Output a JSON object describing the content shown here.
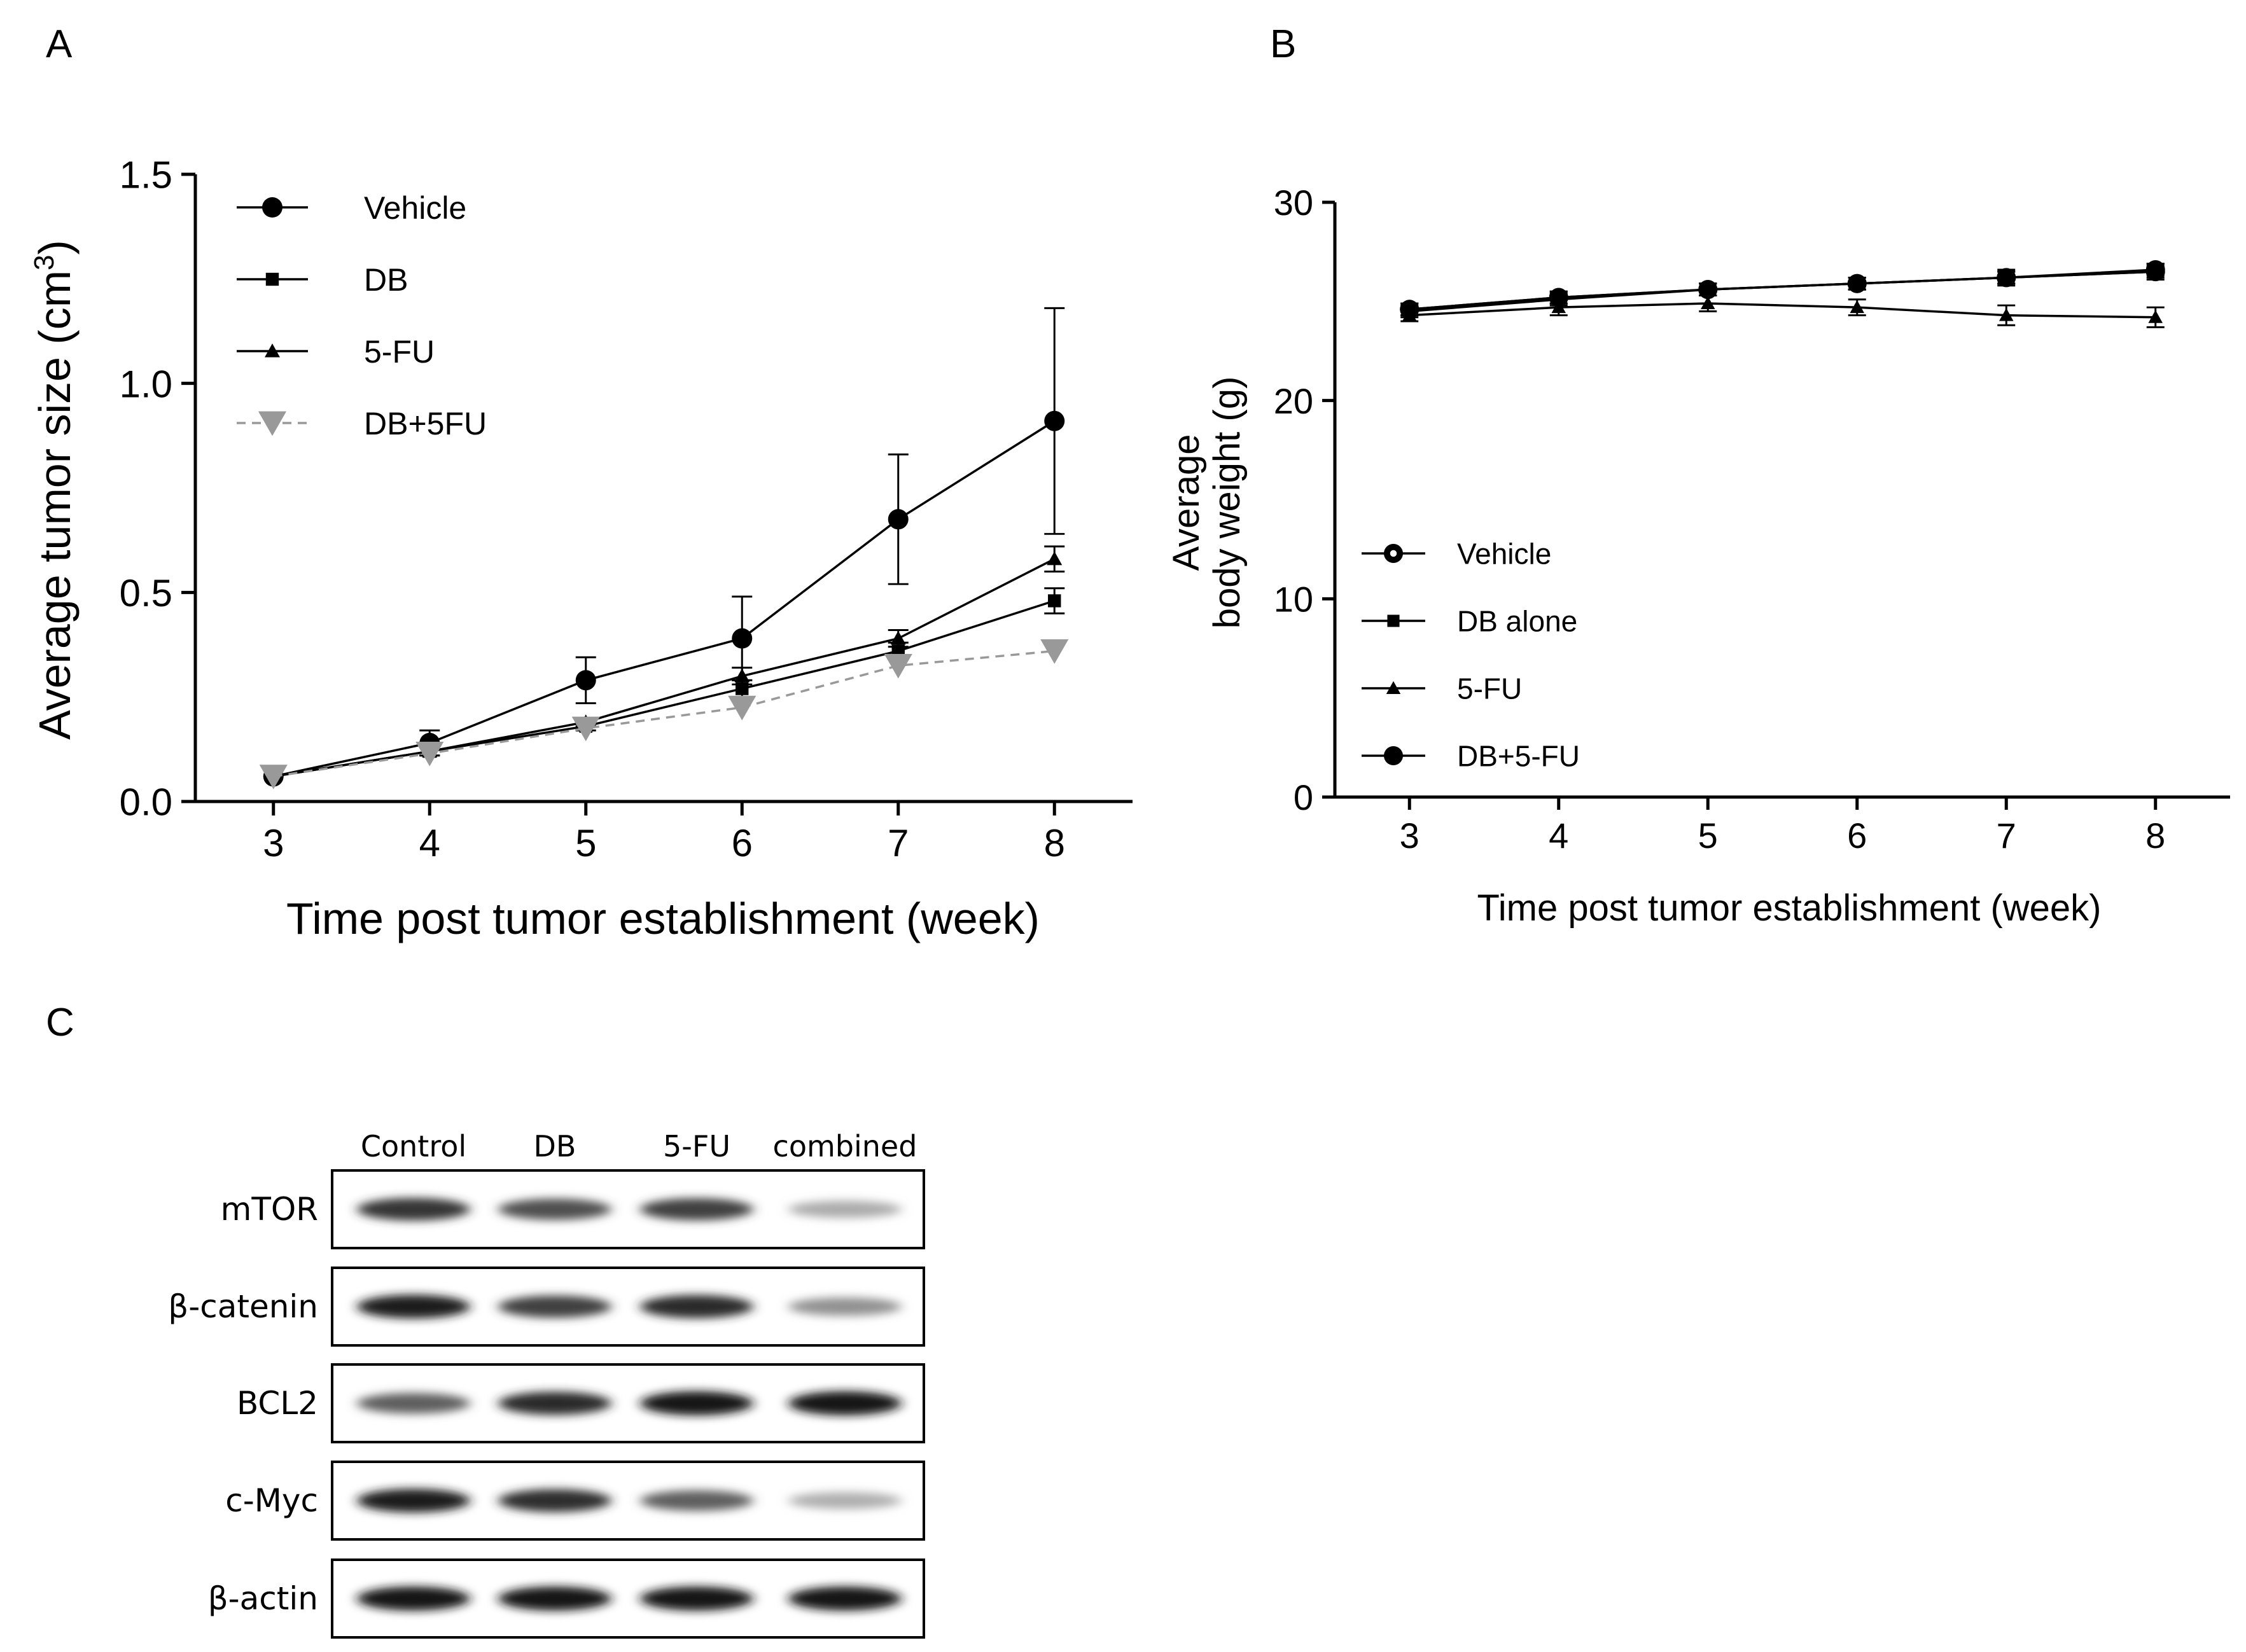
{
  "panels": {
    "a_label": "A",
    "b_label": "B",
    "c_label": "C"
  },
  "chart_data": [
    {
      "panel": "A",
      "type": "line",
      "title": "",
      "xlabel": "Time post tumor establishment (week)",
      "ylabel_main": "Average tumor size (cm",
      "ylabel_sup": "3",
      "ylabel_end": ")",
      "x": [
        3,
        4,
        5,
        6,
        7,
        8
      ],
      "xlim": [
        2.5,
        8.5
      ],
      "ylim": [
        0,
        1.5
      ],
      "yticks": [
        0.0,
        0.5,
        1.0,
        1.5
      ],
      "ytick_labels": [
        "0.0",
        "0.5",
        "1.0",
        "1.5"
      ],
      "xtick_labels": [
        "3",
        "4",
        "5",
        "6",
        "7",
        "8"
      ],
      "legend_position": "top-left",
      "series": [
        {
          "name": "Vehicle",
          "marker": "circle",
          "color": "#000000",
          "dashed": false,
          "values": [
            0.06,
            0.14,
            0.29,
            0.39,
            0.675,
            0.91
          ],
          "errors": [
            0.0,
            0.03,
            0.055,
            0.1,
            0.155,
            0.27
          ]
        },
        {
          "name": "DB",
          "marker": "square",
          "color": "#000000",
          "dashed": false,
          "values": [
            0.06,
            0.12,
            0.18,
            0.27,
            0.36,
            0.48
          ],
          "errors": [
            0.0,
            0.01,
            0.01,
            0.02,
            0.02,
            0.03
          ]
        },
        {
          "name": "5-FU",
          "marker": "triangle",
          "color": "#000000",
          "dashed": false,
          "values": [
            0.06,
            0.12,
            0.19,
            0.3,
            0.39,
            0.58
          ],
          "errors": [
            0.0,
            0.01,
            0.01,
            0.02,
            0.02,
            0.03
          ]
        },
        {
          "name": "DB+5FU",
          "marker": "triangle-down",
          "color": "#999999",
          "dashed": true,
          "values": [
            0.06,
            0.115,
            0.175,
            0.225,
            0.325,
            0.36
          ],
          "errors": [
            0.0,
            0.0,
            0.0,
            0.0,
            0.0,
            0.0
          ]
        }
      ]
    },
    {
      "panel": "B",
      "type": "line",
      "title": "",
      "xlabel": "Time post tumor establishment (week)",
      "ylabel_line1": "Average",
      "ylabel_line2": "body weight (g)",
      "x": [
        3,
        4,
        5,
        6,
        7,
        8
      ],
      "xlim": [
        2.5,
        8.5
      ],
      "ylim": [
        0,
        30
      ],
      "yticks": [
        0,
        10,
        20,
        30
      ],
      "ytick_labels": [
        "0",
        "10",
        "20",
        "30"
      ],
      "xtick_labels": [
        "3",
        "4",
        "5",
        "6",
        "7",
        "8"
      ],
      "legend_position": "bottom-left",
      "series": [
        {
          "name": "Vehicle",
          "marker": "circle-star",
          "color": "#000000",
          "values": [
            24.6,
            25.2,
            25.6,
            25.9,
            26.2,
            26.5
          ],
          "errors": [
            0.3,
            0.3,
            0.3,
            0.3,
            0.4,
            0.4
          ]
        },
        {
          "name": "DB alone",
          "marker": "square",
          "color": "#000000",
          "values": [
            24.5,
            25.1,
            25.6,
            25.9,
            26.2,
            26.5
          ],
          "errors": [
            0.3,
            0.3,
            0.3,
            0.3,
            0.3,
            0.3
          ]
        },
        {
          "name": "5-FU",
          "marker": "triangle",
          "color": "#000000",
          "values": [
            24.3,
            24.7,
            24.9,
            24.7,
            24.3,
            24.2
          ],
          "errors": [
            0.3,
            0.4,
            0.4,
            0.4,
            0.5,
            0.5
          ]
        },
        {
          "name": "DB+5-FU",
          "marker": "circle",
          "color": "#000000",
          "values": [
            24.6,
            25.2,
            25.6,
            25.9,
            26.2,
            26.6
          ],
          "errors": [
            0.3,
            0.3,
            0.3,
            0.3,
            0.3,
            0.3
          ]
        }
      ]
    }
  ],
  "western_blot": {
    "lanes": [
      "Control",
      "DB",
      "5-FU",
      "combined"
    ],
    "rows": [
      {
        "label": "mTOR",
        "intensity": [
          0.85,
          0.72,
          0.8,
          0.3
        ]
      },
      {
        "label": "β-catenin",
        "intensity": [
          0.95,
          0.8,
          0.9,
          0.42
        ]
      },
      {
        "label": "BCL2",
        "intensity": [
          0.65,
          0.9,
          1.0,
          1.0
        ]
      },
      {
        "label": "c-Myc",
        "intensity": [
          0.95,
          0.88,
          0.65,
          0.28
        ]
      },
      {
        "label": "β-actin",
        "intensity": [
          1.0,
          1.0,
          1.0,
          1.0
        ]
      }
    ]
  }
}
